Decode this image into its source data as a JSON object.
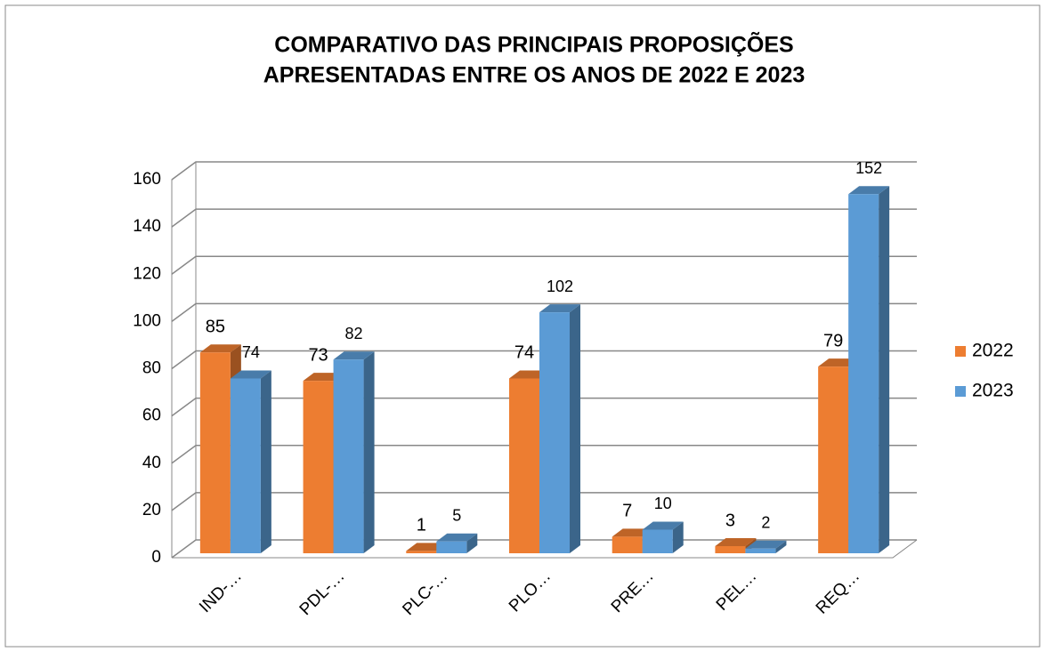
{
  "chart_data": {
    "type": "bar3d",
    "title": [
      "COMPARATIVO DAS PRINCIPAIS PROPOSIÇÕES",
      "APRESENTADAS ENTRE OS ANOS DE 2022 E 2023"
    ],
    "categories": [
      "IND-…",
      "PDL-…",
      "PLC-…",
      "PLO…",
      "PRE…",
      "PEL…",
      "REQ…"
    ],
    "series": [
      {
        "name": "2022",
        "color": "#ed7d31",
        "values": [
          85,
          73,
          1,
          74,
          7,
          3,
          79
        ]
      },
      {
        "name": "2023",
        "color": "#5b9bd5",
        "values": [
          74,
          82,
          5,
          102,
          10,
          2,
          152
        ]
      }
    ],
    "ylim": [
      0,
      160
    ],
    "yticks": [
      0,
      20,
      40,
      60,
      80,
      100,
      120,
      140,
      160
    ],
    "grid": true,
    "legend": "right"
  }
}
